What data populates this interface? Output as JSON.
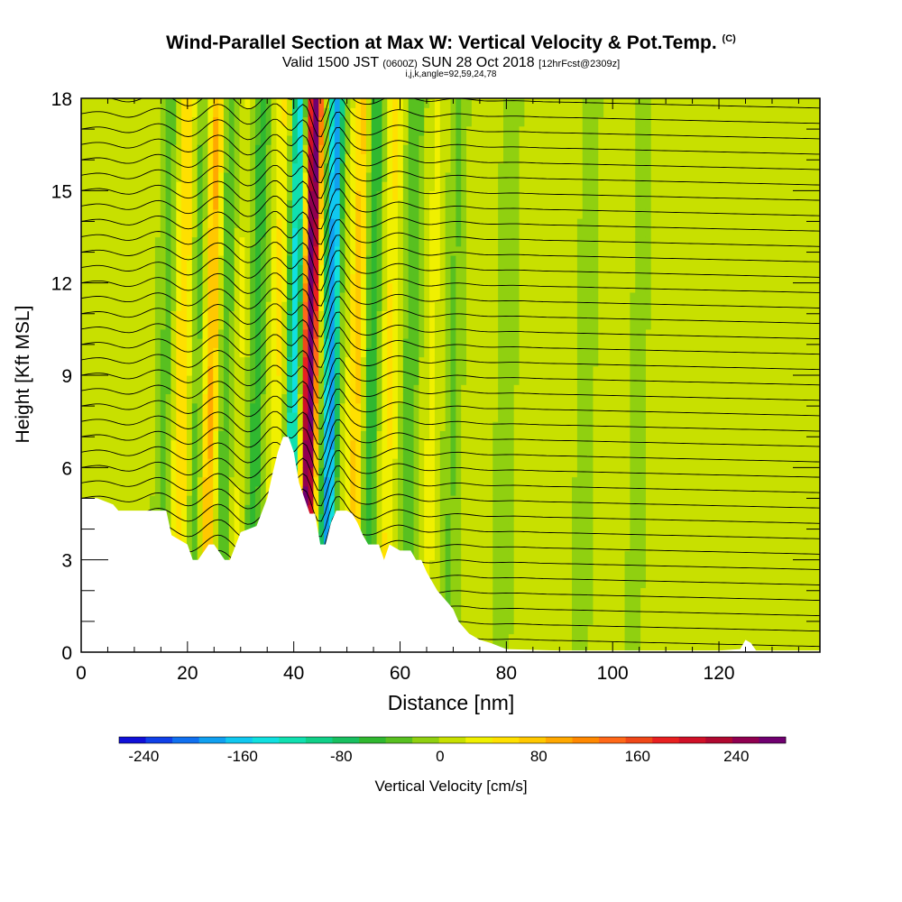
{
  "header": {
    "title": "Wind-Parallel Section at Max W: Vertical Velocity & Pot.Temp.",
    "copyright": "(C)",
    "valid_prefix": "Valid 1500 JST",
    "utc": "(0600Z)",
    "date": "SUN 28 Oct 2018",
    "forecast": "[12hrFcst@2309z]",
    "indices": "i,j,k,angle=92,59,24,78"
  },
  "chart_data": {
    "type": "heatmap",
    "title": "Wind-Parallel Section at Max W: Vertical Velocity & Pot.Temp.",
    "xlabel": "Distance [nm]",
    "ylabel": "Height [Kft MSL]",
    "xlim": [
      0,
      139
    ],
    "ylim": [
      0,
      18
    ],
    "x_ticks": [
      "0",
      "20",
      "40",
      "60",
      "80",
      "100",
      "120"
    ],
    "y_ticks": [
      "0",
      "3",
      "6",
      "9",
      "12",
      "15",
      "18"
    ],
    "colorbar": {
      "label": "Vertical Velocity [cm/s]",
      "tick_labels": [
        "-240",
        "-160",
        "-80",
        "0",
        "80",
        "160",
        "240"
      ],
      "min": -260,
      "max": 280,
      "colors": [
        "#1010d8",
        "#1040e8",
        "#1070f0",
        "#10a0f0",
        "#10c8f0",
        "#10e0e0",
        "#10e0b0",
        "#10d088",
        "#18c060",
        "#30b830",
        "#58c020",
        "#90d010",
        "#c8e000",
        "#f0f000",
        "#ffe000",
        "#ffc800",
        "#ffa800",
        "#ff8800",
        "#ff6818",
        "#f04818",
        "#e82020",
        "#d01028",
        "#b00830",
        "#900050",
        "#700070"
      ]
    },
    "terrain_profile": {
      "x": [
        0,
        3,
        6,
        7,
        12,
        16,
        17,
        20,
        21,
        22,
        24,
        25,
        27,
        28,
        30,
        33,
        35,
        36,
        37,
        38,
        39,
        40,
        41,
        42,
        43,
        44,
        45,
        46,
        47,
        48,
        50,
        51,
        52,
        53,
        54,
        55,
        56,
        57,
        58,
        60,
        62,
        63,
        64,
        65,
        66,
        67,
        68,
        69,
        70,
        71,
        72,
        73,
        75,
        77,
        80,
        90,
        100,
        110,
        120,
        124,
        125,
        126,
        127,
        130,
        139
      ],
      "height_kft": [
        5,
        5,
        4.8,
        4.6,
        4.6,
        4.6,
        3.8,
        3.5,
        3.0,
        3.0,
        3.5,
        3.5,
        3.0,
        3.0,
        3.9,
        4.1,
        5.0,
        5.8,
        6.5,
        7.0,
        7.0,
        6.5,
        5.5,
        5.0,
        4.5,
        4.5,
        3.5,
        3.5,
        4.2,
        4.6,
        4.6,
        4.5,
        4.2,
        3.8,
        3.5,
        3.5,
        3.5,
        3.0,
        3.5,
        3.3,
        3.3,
        3.0,
        3.0,
        2.6,
        2.3,
        2.0,
        1.8,
        1.6,
        1.4,
        1.0,
        0.8,
        0.6,
        0.4,
        0.3,
        0.1,
        0.05,
        0.05,
        0.05,
        0.05,
        0.1,
        0.4,
        0.3,
        0.05,
        0.05,
        0.05
      ]
    },
    "w_bands": [
      {
        "center_x": 43,
        "w": 280
      },
      {
        "center_x": 47,
        "w": -200
      },
      {
        "center_x": 40,
        "w": -150
      },
      {
        "center_x": 37,
        "w": 40
      },
      {
        "center_x": 33,
        "w": -60
      },
      {
        "center_x": 30,
        "w": 20
      },
      {
        "center_x": 27,
        "w": -50
      },
      {
        "center_x": 24.5,
        "w": 90
      },
      {
        "center_x": 22,
        "w": -40
      },
      {
        "center_x": 19,
        "w": 60
      },
      {
        "center_x": 16,
        "w": -35
      },
      {
        "center_x": 52,
        "w": 70
      },
      {
        "center_x": 54.5,
        "w": -70
      },
      {
        "center_x": 58,
        "w": 40
      },
      {
        "center_x": 62,
        "w": -45
      },
      {
        "center_x": 66,
        "w": 20
      },
      {
        "center_x": 70,
        "w": -30
      },
      {
        "center_x": 75,
        "w": 15
      },
      {
        "center_x": 80,
        "w": -25
      },
      {
        "center_x": 86,
        "w": 15
      },
      {
        "center_x": 95,
        "w": -20
      },
      {
        "center_x": 105,
        "w": -15
      },
      {
        "center_x": 118,
        "w": 10
      }
    ],
    "isentrope_levels": [
      303,
      304,
      305,
      306,
      307,
      308,
      309,
      310,
      311,
      312,
      313,
      314,
      315,
      316,
      317,
      318,
      319,
      320,
      321,
      322,
      323,
      324,
      325,
      326,
      327,
      328,
      329,
      330,
      331,
      332,
      333,
      334,
      335,
      336,
      337,
      338
    ]
  }
}
